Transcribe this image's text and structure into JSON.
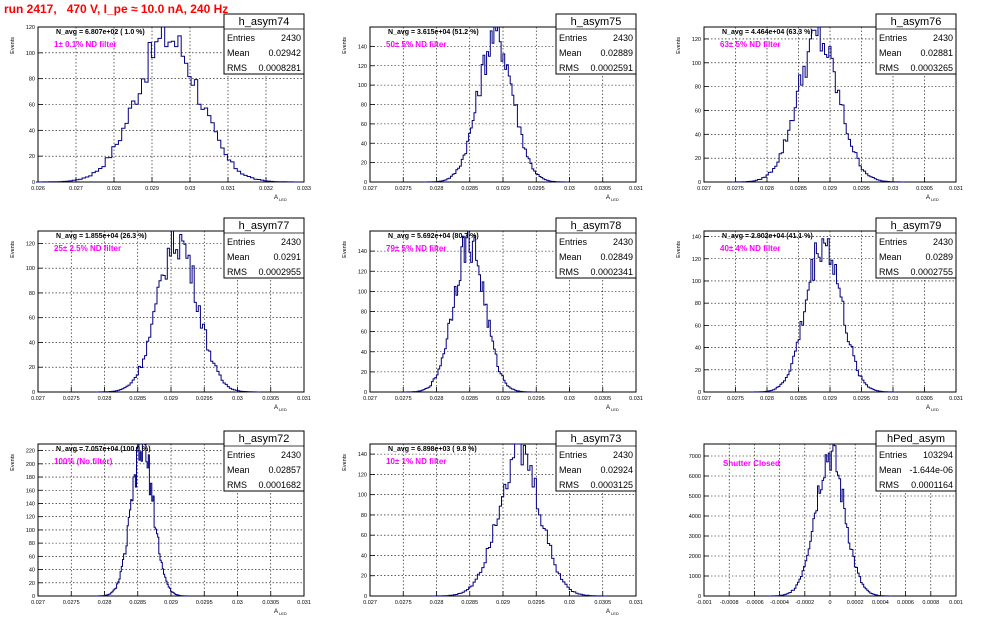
{
  "title": "run 2417,   470 V, I_pe ≈ 10.0 nA, 240 Hz",
  "colors": {
    "title": "#ff0000",
    "annotation": "#ff00ff",
    "histogram": "#000080",
    "grid": "#000000"
  },
  "chart_data": [
    {
      "type": "bar",
      "name": "h_asym74",
      "stats": {
        "entries": "2430",
        "mean": "0.02942",
        "rms": "0.0008281"
      },
      "navg_label": "N_avg = 6.807e+02 ( 1.0 %)",
      "filter_label": "1± 0.1% ND filter",
      "xlabel": "A_{LED}",
      "ylabel": "Events",
      "xlim": [
        0.026,
        0.033
      ],
      "ylim": [
        0,
        120
      ],
      "xticks": [
        "0.026",
        "0.027",
        "0.028",
        "0.029",
        "0.03",
        "0.031",
        "0.032",
        "0.033"
      ],
      "yticks": [
        "0",
        "20",
        "40",
        "60",
        "80",
        "100",
        "120"
      ],
      "mean": 0.02942,
      "sigma": 0.000828,
      "peak": 112
    },
    {
      "type": "bar",
      "name": "h_asym75",
      "stats": {
        "entries": "2430",
        "mean": "0.02889",
        "rms": "0.0002591"
      },
      "navg_label": "N_avg = 3.615e+04 (51.2 %)",
      "filter_label": "50± 5% ND filter",
      "xlabel": "A_{LED}",
      "ylabel": "Events",
      "xlim": [
        0.027,
        0.031
      ],
      "ylim": [
        0,
        160
      ],
      "xticks": [
        "0.027",
        "0.0275",
        "0.028",
        "0.0285",
        "0.029",
        "0.0295",
        "0.03",
        "0.0305",
        "0.031"
      ],
      "yticks": [
        "0",
        "20",
        "40",
        "60",
        "80",
        "100",
        "120",
        "140"
      ],
      "mean": 0.02889,
      "sigma": 0.000259,
      "peak": 152
    },
    {
      "type": "bar",
      "name": "h_asym76",
      "stats": {
        "entries": "2430",
        "mean": "0.02881",
        "rms": "0.0003265"
      },
      "navg_label": "N_avg = 4.464e+04 (63.3 %)",
      "filter_label": "63± 5% ND filter",
      "xlabel": "A_{LED}",
      "ylabel": "Events",
      "xlim": [
        0.027,
        0.031
      ],
      "ylim": [
        0,
        130
      ],
      "xticks": [
        "0.027",
        "0.0275",
        "0.028",
        "0.0285",
        "0.029",
        "0.0295",
        "0.03",
        "0.0305",
        "0.031"
      ],
      "yticks": [
        "0",
        "20",
        "40",
        "60",
        "80",
        "100",
        "120"
      ],
      "mean": 0.02881,
      "sigma": 0.000327,
      "peak": 120
    },
    {
      "type": "bar",
      "name": "h_asym77",
      "stats": {
        "entries": "2430",
        "mean": "0.0291",
        "rms": "0.0002955"
      },
      "navg_label": "N_avg = 1.855e+04 (26.3 %)",
      "filter_label": "25± 2.5% ND filter",
      "xlabel": "A_{LED}",
      "ylabel": "Events",
      "xlim": [
        0.027,
        0.031
      ],
      "ylim": [
        0,
        130
      ],
      "xticks": [
        "0.027",
        "0.0275",
        "0.028",
        "0.0285",
        "0.029",
        "0.0295",
        "0.03",
        "0.0305",
        "0.031"
      ],
      "yticks": [
        "0",
        "20",
        "40",
        "60",
        "80",
        "100",
        "120"
      ],
      "mean": 0.0291,
      "sigma": 0.000296,
      "peak": 124
    },
    {
      "type": "bar",
      "name": "h_asym78",
      "stats": {
        "entries": "2430",
        "mean": "0.02849",
        "rms": "0.0002341"
      },
      "navg_label": "N_avg = 5.692e+04 (80.7 %)",
      "filter_label": "79± 5% ND filter",
      "xlabel": "A_{LED}",
      "ylabel": "Events",
      "xlim": [
        0.027,
        0.031
      ],
      "ylim": [
        0,
        160
      ],
      "xticks": [
        "0.027",
        "0.0275",
        "0.028",
        "0.0285",
        "0.029",
        "0.0295",
        "0.03",
        "0.0305",
        "0.031"
      ],
      "yticks": [
        "0",
        "20",
        "40",
        "60",
        "80",
        "100",
        "120",
        "140"
      ],
      "mean": 0.02849,
      "sigma": 0.000234,
      "peak": 150
    },
    {
      "type": "bar",
      "name": "h_asym79",
      "stats": {
        "entries": "2430",
        "mean": "0.0289",
        "rms": "0.0002755"
      },
      "navg_label": "N_avg = 2.902e+04 (41.1 %)",
      "filter_label": "40± 4% ND filter",
      "xlabel": "A_{LED}",
      "ylabel": "Events",
      "xlim": [
        0.027,
        0.031
      ],
      "ylim": [
        0,
        145
      ],
      "xticks": [
        "0.027",
        "0.0275",
        "0.028",
        "0.0285",
        "0.029",
        "0.0295",
        "0.03",
        "0.0305",
        "0.031"
      ],
      "yticks": [
        "0",
        "20",
        "40",
        "60",
        "80",
        "100",
        "120",
        "140"
      ],
      "mean": 0.0289,
      "sigma": 0.000276,
      "peak": 136
    },
    {
      "type": "bar",
      "name": "h_asym72",
      "stats": {
        "entries": "2430",
        "mean": "0.02857",
        "rms": "0.0001682"
      },
      "navg_label": "N_avg = 7.057e+04 (100.0 %)",
      "filter_label": "100% (No filter)",
      "xlabel": "A_{LED}",
      "ylabel": "Events",
      "xlim": [
        0.027,
        0.031
      ],
      "ylim": [
        0,
        230
      ],
      "xticks": [
        "0.027",
        "0.0275",
        "0.028",
        "0.0285",
        "0.029",
        "0.0295",
        "0.03",
        "0.0305",
        "0.031"
      ],
      "yticks": [
        "0",
        "20",
        "40",
        "60",
        "80",
        "100",
        "120",
        "140",
        "160",
        "180",
        "200",
        "220"
      ],
      "mean": 0.02857,
      "sigma": 0.000168,
      "peak": 222
    },
    {
      "type": "bar",
      "name": "h_asym73",
      "stats": {
        "entries": "2430",
        "mean": "0.02924",
        "rms": "0.0003125"
      },
      "navg_label": "N_avg = 6.898e+03 ( 9.8 %)",
      "filter_label": "10± 1% ND filter",
      "xlabel": "A_{LED}",
      "ylabel": "Events",
      "xlim": [
        0.027,
        0.031
      ],
      "ylim": [
        0,
        150
      ],
      "xticks": [
        "0.027",
        "0.0275",
        "0.028",
        "0.0285",
        "0.029",
        "0.0295",
        "0.03",
        "0.0305",
        "0.031"
      ],
      "yticks": [
        "0",
        "20",
        "40",
        "60",
        "80",
        "100",
        "120",
        "140"
      ],
      "mean": 0.02924,
      "sigma": 0.000313,
      "peak": 142
    },
    {
      "type": "bar",
      "name": "hPed_asym",
      "stats": {
        "entries": "103294",
        "mean": "-1.644e-06",
        "rms": "0.0001164"
      },
      "navg_label": "",
      "filter_label": "Shutter Closed",
      "xlabel": "",
      "ylabel": "",
      "xlim": [
        -0.001,
        0.001
      ],
      "ylim": [
        0,
        7600
      ],
      "xticks": [
        "-0.001",
        "-0.0008",
        "-0.0006",
        "-0.0004",
        "-0.0002",
        "0",
        "0.0002",
        "0.0004",
        "0.0006",
        "0.0008",
        "0.001"
      ],
      "yticks": [
        "0",
        "1000",
        "2000",
        "3000",
        "4000",
        "5000",
        "6000",
        "7000"
      ],
      "mean": -1.644e-06,
      "sigma": 0.0001164,
      "peak": 7100
    }
  ]
}
